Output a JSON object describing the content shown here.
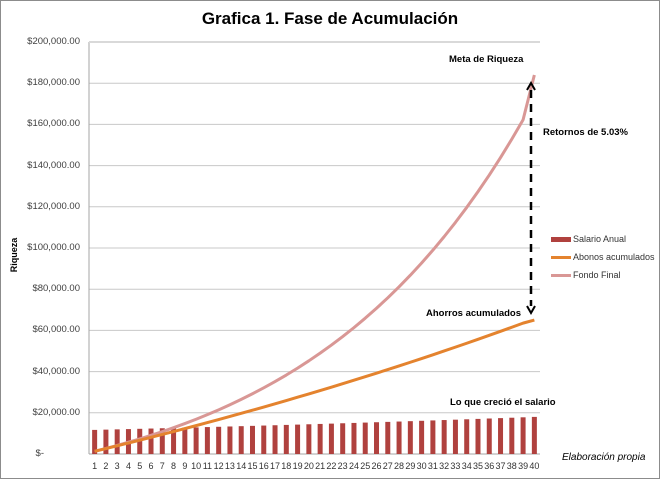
{
  "chart_data": {
    "type": "bar+line",
    "title": "Grafica 1. Fase de Acumulación",
    "xlabel": "",
    "ylabel": "Riqueza",
    "ylim": [
      0,
      200000
    ],
    "yticks": [
      "$-",
      "$20,000.00",
      "$40,000.00",
      "$60,000.00",
      "$80,000.00",
      "$100,000.00",
      "$120,000.00",
      "$140,000.00",
      "$160,000.00",
      "$180,000.00",
      "$200,000.00"
    ],
    "categories": [
      1,
      2,
      3,
      4,
      5,
      6,
      7,
      8,
      9,
      10,
      11,
      12,
      13,
      14,
      15,
      16,
      17,
      18,
      19,
      20,
      21,
      22,
      23,
      24,
      25,
      26,
      27,
      28,
      29,
      30,
      31,
      32,
      33,
      34,
      35,
      36,
      37,
      38,
      39,
      40
    ],
    "grid": true,
    "legend_position": "right",
    "series": [
      {
        "name": "Salario Anual",
        "kind": "bar",
        "color": "#b0413e",
        "values": [
          11700,
          11830,
          11960,
          12090,
          12230,
          12360,
          12500,
          12640,
          12780,
          12920,
          13070,
          13210,
          13360,
          13510,
          13660,
          13810,
          13960,
          14120,
          14270,
          14430,
          14590,
          14750,
          14920,
          15080,
          15250,
          15420,
          15590,
          15760,
          15940,
          16120,
          16300,
          16480,
          16660,
          16850,
          17040,
          17230,
          17420,
          17610,
          17810,
          18010
        ]
      },
      {
        "name": "Abonos acumulados",
        "kind": "line",
        "color": "#e4832e",
        "values": [
          1310,
          2640,
          3980,
          5330,
          6700,
          8080,
          9480,
          10900,
          12330,
          13780,
          15240,
          16720,
          18220,
          19730,
          21260,
          22800,
          24370,
          25950,
          27550,
          29160,
          30800,
          32450,
          34120,
          35810,
          37520,
          39250,
          40990,
          42760,
          44540,
          46350,
          48170,
          50020,
          51880,
          53770,
          55680,
          57610,
          59560,
          61530,
          63530,
          65000
        ]
      },
      {
        "name": "Fondo Final",
        "kind": "line",
        "color": "#d99795",
        "values": [
          1310,
          2700,
          4170,
          5710,
          7340,
          9050,
          10860,
          12760,
          14760,
          16870,
          19100,
          21440,
          23910,
          26510,
          29240,
          32120,
          35150,
          38340,
          41700,
          45240,
          48960,
          52880,
          57010,
          61350,
          65930,
          70750,
          75820,
          81170,
          86790,
          92720,
          98950,
          105520,
          112430,
          119700,
          127360,
          135420,
          143900,
          152840,
          162240,
          184000
        ]
      }
    ],
    "annotations": [
      {
        "text": "Meta de Riqueza",
        "x": 40,
        "y": 184000
      },
      {
        "text": "Retornos de 5.03%",
        "x": 40,
        "y": 125000
      },
      {
        "text": "Ahorros acumulados",
        "x": 40,
        "y": 65000
      },
      {
        "text": "Lo que creció el salario",
        "x": 40,
        "y": 18000
      }
    ]
  },
  "title": "Grafica 1. Fase de Acumulación",
  "ylabel": "Riqueza",
  "annotations": {
    "meta": "Meta de Riqueza",
    "retornos": "Retornos de 5.03%",
    "ahorros": "Ahorros acumulados",
    "salario": "Lo que creció el salario"
  },
  "legend": [
    "Salario Anual",
    "Abonos acumulados",
    "Fondo Final"
  ],
  "credit": "Elaboración propia"
}
